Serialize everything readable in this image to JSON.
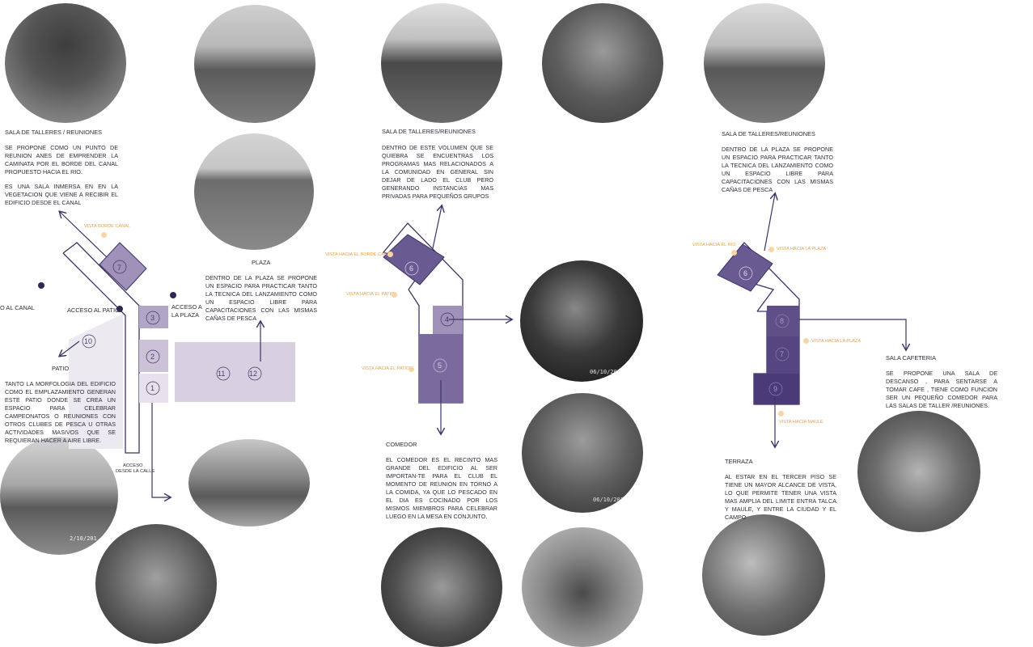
{
  "section1": {
    "sala_title": "SALA DE TALLERES / REUNIONES",
    "sala_text_1": "SE PROPONE COMO UN PUNTO DE REUNION ANES DE EMPRENDER LA CAMINATA POR EL BORDE DEL CANAL PROPUESTO HACIA EL RIO.",
    "sala_text_2": "ES UNA SALA INMERSA EN EN LA VEGETACION QUE VIENE A RECIBIR EL EDIFICIO DESDE EL CANAL",
    "plaza_title": "PLAZA",
    "plaza_text": "DENTRO DE LA PLAZA SE PROPONE UN ESPACIO PARA PRACTICAR TANTO LA TECNICA DEL LANZAMIENTO COMO UN ESPACIO LIBRE PARA CAPACITACIONES CON LAS MISMAS CAÑAS DE PESCA",
    "patio_title": "PATIO",
    "patio_text": "TANTO LA MORFOLOGIA DEL EDIFICIO COMO EL EMPLAZAMIENTO GENERAN ESTE PATIO DONDE SE CREA UN ESPACIO PARA CELEBRAR CAMPEONATOS O REUNIONES CON OTROS CLUBES DE PESCA U OTRAS ACTIVIDADES MASIVOS QUE SE REQUIERAN HACER A AIRE LIBRE.",
    "label_canal": "O AL CANAL",
    "label_acceso_patio": "ACCESO AL PATIO",
    "label_acceso_plaza_1": "ACCESO A",
    "label_acceso_plaza_2": "LA PLAZA",
    "label_acceso_calle_1": "ACCESO",
    "label_acceso_calle_2": "DESDE LA CALLE",
    "vista_borde_canal": "VISTA BORDE CANAL",
    "n7": "7",
    "n3": "3",
    "n2": "2",
    "n1": "1",
    "n10": "10",
    "n11": "11",
    "n12": "12"
  },
  "section2": {
    "sala_title": "SALA DE TALLERES/REUNIONES",
    "sala_text": "DENTRO DE ESTE VOLUMEN QUE SE QUIEBRA SE ENCUENTRAS LOS PROGRAMAS MAS RELACIONADOS A LA COMUNIDAD EN GENERAL SIN DEJAR DE LADO EL CLUB PERO GENERANDO INSTANCIAS MAS PRIVADAS PARA PEQUEÑOS GRUPOS",
    "comedor_title": "COMEDOR",
    "comedor_text": "EL COMEDOR ES EL RECINTO MAS GRANDE DEL EDIFICIO AL SER IMPORTAN-TE PARA EL CLUB EL MOMENTO DE REUNION EN TORNO A LA COMIDA, YA QUE LO PESCADO EN EL DIA ES COCINADO POR LOS MISMOS MIEMBROS PARA CELEBRAR LUEGO EN LA MESA EN CONJUNTO.",
    "vista_borde_canal": "VISTA HACIA EL BORDE CANAL",
    "vista_patio_1": "VISTA HACIA EL PATIO",
    "vista_patio_2": "VISTA HACIA EL PATIO",
    "n6": "6",
    "n4": "4",
    "n5": "5",
    "date_1": "06/10/201",
    "date_2": "06/10/201"
  },
  "section3": {
    "sala_title": "SALA DE TALLERES/REUNIONES",
    "sala_text": "DENTRO DE LA PLAZA SE PROPONE UN ESPACIO PARA PRACTICAR TANTO LA TECNICA DEL LANZAMIENTO COMO UN ESPACIO LIBRE PARA CAPACITACIONES CON LAS MISMAS CAÑAS DE PESCA",
    "cafeteria_title": "SALA CAFETERIA",
    "cafeteria_text": "SE PROPONE UNA SALA DE DESCANSO , PARA SENTARSE A TOMAR CAFE , TIENE COMO FUNCION SER UN PEQUEÑO COMEDOR PARA LAS SALAS DE TALLER /REUNIONES.",
    "terraza_title": "TERRAZA",
    "terraza_text": "AL ESTAR EN EL TERCER PISO SE TIENE UN MAYOR ALCANCE DE VISTA, LO QUE PERMITE TENER UNA VISTA MAS AMPLIA DEL LIMITE ENTRA TALCA Y MAULE, Y ENTRE LA CIUDAD Y EL CAMPO",
    "vista_rio": "VISTA HACIA EL RIO",
    "vista_plaza_1": "VISTA HACIA LA PLAZA",
    "vista_plaza_2": "VISTA HACIA LA PLAZA",
    "vista_maule": "VISTA HACIA MAULE",
    "n6": "6",
    "n8": "8",
    "n7": "7",
    "n9": "9"
  },
  "photo_date_left": "2/10/201",
  "colors": {
    "accent": "#4b3f72",
    "light": "#d8d0e0",
    "mid": "#9f91b8",
    "dark": "#5f4f88",
    "vista": "#e8a050"
  }
}
